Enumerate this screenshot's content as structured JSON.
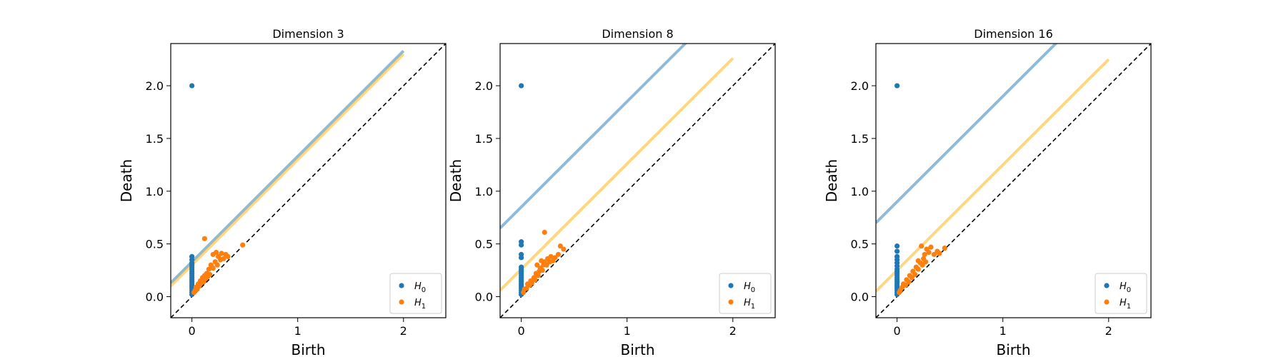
{
  "chart_data": [
    {
      "type": "scatter",
      "title": "Dimension 3",
      "xlabel": "Birth",
      "ylabel": "Death",
      "xlim": [
        -0.2,
        2.4
      ],
      "ylim": [
        -0.2,
        2.4
      ],
      "xticks": [
        "0",
        "1",
        "2"
      ],
      "yticks": [
        "0.0",
        "0.5",
        "1.0",
        "1.5",
        "2.0"
      ],
      "grid": false,
      "legend_position": "bottom-right",
      "series": [
        {
          "name": "H0",
          "color": "#1f77b4",
          "points": [
            [
              0,
              2.0
            ],
            [
              0,
              0.38
            ],
            [
              0,
              0.35
            ],
            [
              0,
              0.32
            ],
            [
              0,
              0.3
            ],
            [
              0,
              0.28
            ],
            [
              0,
              0.26
            ],
            [
              0,
              0.24
            ],
            [
              0,
              0.22
            ],
            [
              0,
              0.2
            ],
            [
              0,
              0.18
            ],
            [
              0,
              0.16
            ],
            [
              0,
              0.14
            ],
            [
              0,
              0.12
            ],
            [
              0,
              0.1
            ],
            [
              0,
              0.08
            ],
            [
              0,
              0.06
            ],
            [
              0,
              0.04
            ],
            [
              0,
              0.02
            ]
          ]
        },
        {
          "name": "H1",
          "color": "#ff7f0e",
          "points": [
            [
              0.02,
              0.04
            ],
            [
              0.03,
              0.06
            ],
            [
              0.04,
              0.09
            ],
            [
              0.05,
              0.07
            ],
            [
              0.06,
              0.12
            ],
            [
              0.07,
              0.1
            ],
            [
              0.08,
              0.15
            ],
            [
              0.09,
              0.13
            ],
            [
              0.1,
              0.18
            ],
            [
              0.11,
              0.14
            ],
            [
              0.12,
              0.2
            ],
            [
              0.13,
              0.17
            ],
            [
              0.14,
              0.22
            ],
            [
              0.15,
              0.19
            ],
            [
              0.16,
              0.26
            ],
            [
              0.17,
              0.21
            ],
            [
              0.18,
              0.3
            ],
            [
              0.2,
              0.27
            ],
            [
              0.22,
              0.33
            ],
            [
              0.24,
              0.3
            ],
            [
              0.25,
              0.38
            ],
            [
              0.27,
              0.35
            ],
            [
              0.28,
              0.41
            ],
            [
              0.3,
              0.36
            ],
            [
              0.32,
              0.4
            ],
            [
              0.34,
              0.38
            ],
            [
              0.12,
              0.55
            ],
            [
              0.48,
              0.49
            ],
            [
              0.2,
              0.4
            ],
            [
              0.23,
              0.42
            ]
          ]
        }
      ],
      "reference_lines": [
        {
          "kind": "diagonal",
          "color": "#000000",
          "style": "dashed"
        },
        {
          "kind": "band",
          "series": "H0",
          "color": "#1f77b4",
          "alpha": 0.5,
          "offset": 0.33,
          "x_end": 2.0
        },
        {
          "kind": "band",
          "series": "H1",
          "color": "#ffb000",
          "alpha": 0.5,
          "offset": 0.3,
          "x_end": 2.0
        }
      ]
    },
    {
      "type": "scatter",
      "title": "Dimension 8",
      "xlabel": "Birth",
      "ylabel": "Death",
      "xlim": [
        -0.2,
        2.4
      ],
      "ylim": [
        -0.2,
        2.4
      ],
      "xticks": [
        "0",
        "1",
        "2"
      ],
      "yticks": [
        "0.0",
        "0.5",
        "1.0",
        "1.5",
        "2.0"
      ],
      "grid": false,
      "legend_position": "bottom-right",
      "series": [
        {
          "name": "H0",
          "color": "#1f77b4",
          "points": [
            [
              0,
              2.0
            ],
            [
              0,
              0.52
            ],
            [
              0,
              0.49
            ],
            [
              0,
              0.4
            ],
            [
              0,
              0.37
            ],
            [
              0,
              0.28
            ],
            [
              0,
              0.26
            ],
            [
              0,
              0.24
            ],
            [
              0,
              0.22
            ],
            [
              0,
              0.2
            ],
            [
              0,
              0.18
            ],
            [
              0,
              0.16
            ],
            [
              0,
              0.14
            ],
            [
              0,
              0.12
            ],
            [
              0,
              0.1
            ],
            [
              0,
              0.08
            ],
            [
              0,
              0.06
            ],
            [
              0,
              0.04
            ],
            [
              0,
              0.02
            ]
          ]
        },
        {
          "name": "H1",
          "color": "#ff7f0e",
          "points": [
            [
              0.02,
              0.04
            ],
            [
              0.03,
              0.07
            ],
            [
              0.05,
              0.08
            ],
            [
              0.06,
              0.12
            ],
            [
              0.08,
              0.11
            ],
            [
              0.09,
              0.15
            ],
            [
              0.1,
              0.13
            ],
            [
              0.12,
              0.18
            ],
            [
              0.13,
              0.16
            ],
            [
              0.14,
              0.22
            ],
            [
              0.16,
              0.2
            ],
            [
              0.17,
              0.24
            ],
            [
              0.18,
              0.27
            ],
            [
              0.2,
              0.25
            ],
            [
              0.21,
              0.3
            ],
            [
              0.22,
              0.33
            ],
            [
              0.24,
              0.3
            ],
            [
              0.25,
              0.36
            ],
            [
              0.27,
              0.33
            ],
            [
              0.28,
              0.38
            ],
            [
              0.3,
              0.34
            ],
            [
              0.32,
              0.37
            ],
            [
              0.35,
              0.4
            ],
            [
              0.37,
              0.48
            ],
            [
              0.4,
              0.45
            ],
            [
              0.22,
              0.61
            ],
            [
              0.15,
              0.3
            ],
            [
              0.19,
              0.34
            ]
          ]
        }
      ],
      "reference_lines": [
        {
          "kind": "diagonal",
          "color": "#000000",
          "style": "dashed"
        },
        {
          "kind": "band",
          "series": "H0",
          "color": "#1f77b4",
          "alpha": 0.5,
          "offset": 0.85,
          "x_end": 2.0
        },
        {
          "kind": "band",
          "series": "H1",
          "color": "#ffb000",
          "alpha": 0.5,
          "offset": 0.26,
          "x_end": 2.0
        }
      ]
    },
    {
      "type": "scatter",
      "title": "Dimension 16",
      "xlabel": "Birth",
      "ylabel": "Death",
      "xlim": [
        -0.2,
        2.4
      ],
      "ylim": [
        -0.2,
        2.4
      ],
      "xticks": [
        "0",
        "1",
        "2"
      ],
      "yticks": [
        "0.0",
        "0.5",
        "1.0",
        "1.5",
        "2.0"
      ],
      "grid": false,
      "legend_position": "bottom-right",
      "series": [
        {
          "name": "H0",
          "color": "#1f77b4",
          "points": [
            [
              0,
              2.0
            ],
            [
              0,
              0.48
            ],
            [
              0,
              0.43
            ],
            [
              0,
              0.38
            ],
            [
              0,
              0.35
            ],
            [
              0,
              0.32
            ],
            [
              0,
              0.29
            ],
            [
              0,
              0.26
            ],
            [
              0,
              0.24
            ],
            [
              0,
              0.22
            ],
            [
              0,
              0.2
            ],
            [
              0,
              0.18
            ],
            [
              0,
              0.16
            ],
            [
              0,
              0.14
            ],
            [
              0,
              0.12
            ],
            [
              0,
              0.1
            ],
            [
              0,
              0.08
            ],
            [
              0,
              0.06
            ],
            [
              0,
              0.04
            ],
            [
              0,
              0.02
            ]
          ]
        },
        {
          "name": "H1",
          "color": "#ff7f0e",
          "points": [
            [
              0.02,
              0.04
            ],
            [
              0.03,
              0.06
            ],
            [
              0.05,
              0.09
            ],
            [
              0.06,
              0.12
            ],
            [
              0.08,
              0.11
            ],
            [
              0.09,
              0.16
            ],
            [
              0.11,
              0.14
            ],
            [
              0.12,
              0.2
            ],
            [
              0.14,
              0.18
            ],
            [
              0.15,
              0.24
            ],
            [
              0.17,
              0.21
            ],
            [
              0.18,
              0.28
            ],
            [
              0.2,
              0.26
            ],
            [
              0.22,
              0.32
            ],
            [
              0.24,
              0.3
            ],
            [
              0.25,
              0.36
            ],
            [
              0.27,
              0.33
            ],
            [
              0.28,
              0.45
            ],
            [
              0.3,
              0.42
            ],
            [
              0.32,
              0.47
            ],
            [
              0.35,
              0.4
            ],
            [
              0.38,
              0.43
            ],
            [
              0.4,
              0.41
            ],
            [
              0.45,
              0.46
            ],
            [
              0.23,
              0.48
            ],
            [
              0.2,
              0.34
            ],
            [
              0.26,
              0.4
            ]
          ]
        }
      ],
      "reference_lines": [
        {
          "kind": "diagonal",
          "color": "#000000",
          "style": "dashed"
        },
        {
          "kind": "band",
          "series": "H0",
          "color": "#1f77b4",
          "alpha": 0.5,
          "offset": 0.9,
          "x_end": 2.0
        },
        {
          "kind": "band",
          "series": "H1",
          "color": "#ffb000",
          "alpha": 0.5,
          "offset": 0.25,
          "x_end": 2.0
        }
      ]
    }
  ]
}
